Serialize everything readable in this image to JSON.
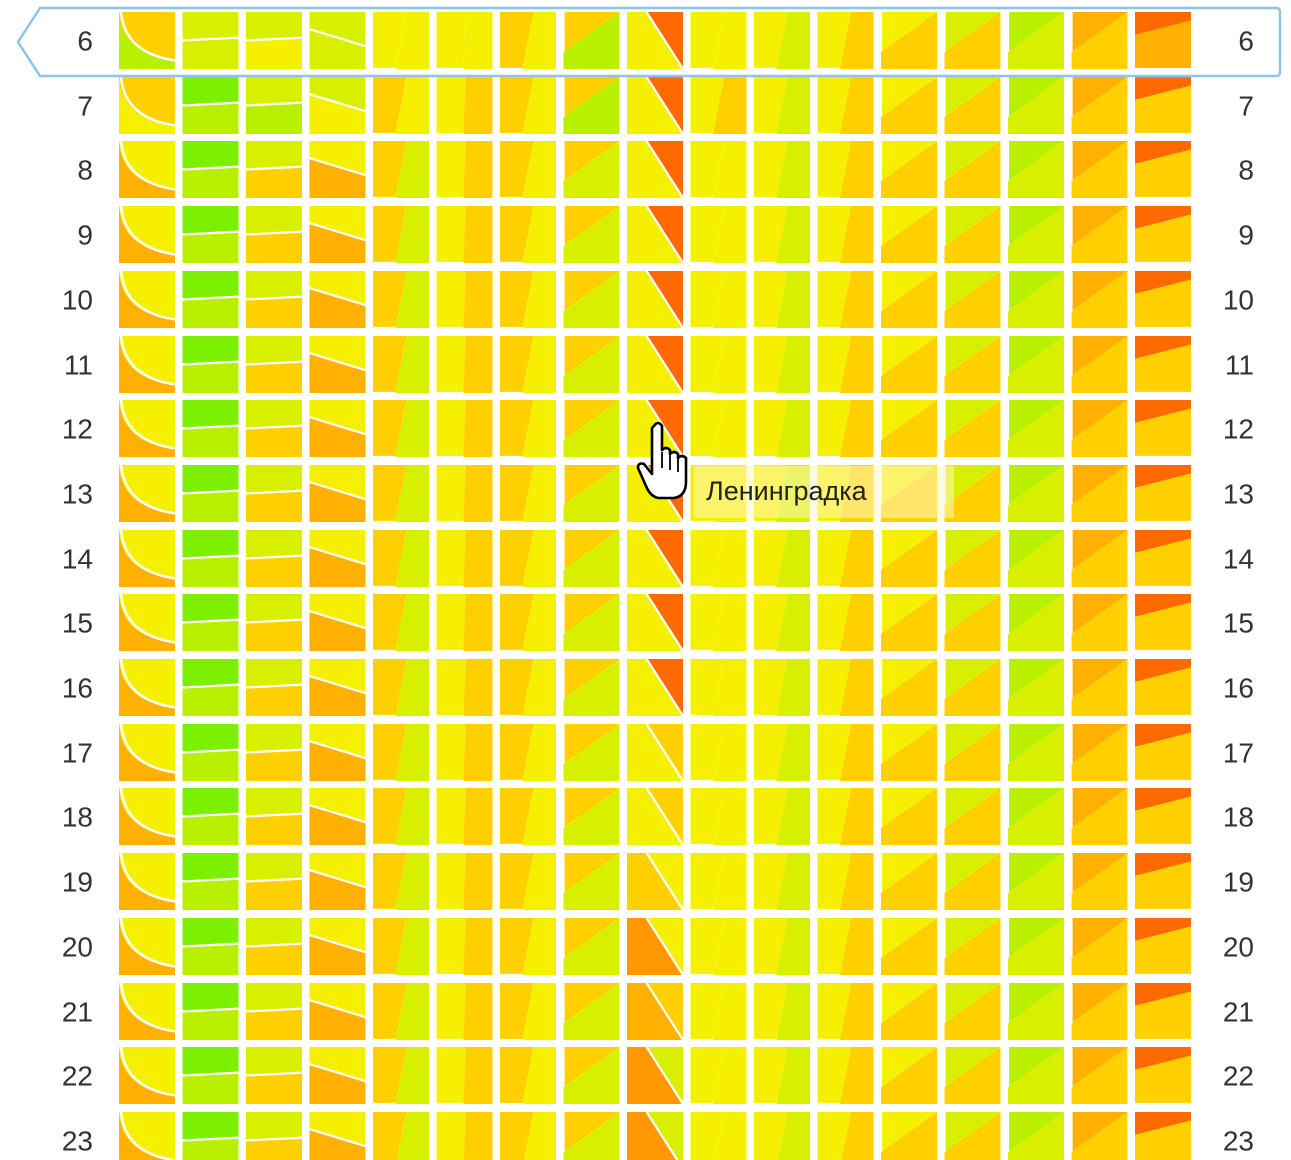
{
  "hours": [
    "6",
    "7",
    "8",
    "9",
    "10",
    "11",
    "12",
    "13",
    "14",
    "15",
    "16",
    "17",
    "18",
    "19",
    "20",
    "21",
    "22",
    "23"
  ],
  "selected_hour": "6",
  "tooltip": {
    "text": "Ленинградка"
  },
  "cursor": {
    "icon": "hand-pointer-icon"
  },
  "palette": {
    "green": "#7cf000",
    "lime": "#b8f000",
    "yellowgreen": "#d8f000",
    "yellow": "#f5f000",
    "amber": "#ffd000",
    "orange": "#ffb000",
    "deeporange": "#ff9800",
    "red": "#ff6a00",
    "highlight_border": "#8cc4ea"
  },
  "roads": [
    {
      "shape": "curve",
      "rows": [
        [
          "amber",
          "lime"
        ],
        [
          "amber",
          "yellow"
        ],
        [
          "yellow",
          "orange"
        ]
      ]
    },
    {
      "shape": "hsplit",
      "rows": [
        [
          "yellowgreen",
          "yellowgreen"
        ],
        [
          "green",
          "lime"
        ],
        [
          "green",
          "lime"
        ]
      ]
    },
    {
      "shape": "hsplit",
      "rows": [
        [
          "yellowgreen",
          "yellow"
        ],
        [
          "yellowgreen",
          "lime"
        ],
        [
          "yellowgreen",
          "amber"
        ]
      ]
    },
    {
      "shape": "wedge-down",
      "rows": [
        [
          "yellowgreen",
          "yellowgreen"
        ],
        [
          "yellowgreen",
          "yellow"
        ],
        [
          "yellow",
          "orange"
        ]
      ]
    },
    {
      "shape": "slant",
      "rows": [
        [
          "yellow",
          "yellow"
        ],
        [
          "amber",
          "yellow"
        ],
        [
          "amber",
          "yellowgreen"
        ]
      ]
    },
    {
      "shape": "vsplit",
      "rows": [
        [
          "yellow",
          "yellow"
        ],
        [
          "yellow",
          "amber"
        ],
        [
          "yellow",
          "amber"
        ]
      ]
    },
    {
      "shape": "slant",
      "rows": [
        [
          "amber",
          "yellow"
        ],
        [
          "amber",
          "yellow"
        ],
        [
          "amber",
          "yellow"
        ]
      ]
    },
    {
      "shape": "diag-up",
      "rows": [
        [
          "lime",
          "amber"
        ],
        [
          "lime",
          "amber"
        ],
        [
          "yellowgreen",
          "amber"
        ]
      ]
    },
    {
      "shape": "wedge-top",
      "rows": [
        [
          "yellow",
          "red"
        ],
        [
          "yellow",
          "red"
        ],
        [
          "yellow",
          "red"
        ]
      ]
    },
    {
      "shape": "slant",
      "rows": [
        [
          "yellow",
          "yellow"
        ],
        [
          "yellow",
          "amber"
        ],
        [
          "yellow",
          "yellow"
        ]
      ]
    },
    {
      "shape": "slant",
      "rows": [
        [
          "yellow",
          "yellowgreen"
        ],
        [
          "yellow",
          "yellowgreen"
        ],
        [
          "yellow",
          "yellowgreen"
        ]
      ]
    },
    {
      "shape": "slant",
      "rows": [
        [
          "yellow",
          "amber"
        ],
        [
          "yellow",
          "amber"
        ],
        [
          "yellow",
          "amber"
        ]
      ]
    },
    {
      "shape": "diag-up",
      "rows": [
        [
          "amber",
          "yellow"
        ],
        [
          "amber",
          "yellow"
        ],
        [
          "amber",
          "yellow"
        ]
      ]
    },
    {
      "shape": "diag-up",
      "rows": [
        [
          "amber",
          "yellowgreen"
        ],
        [
          "amber",
          "yellowgreen"
        ],
        [
          "amber",
          "yellowgreen"
        ]
      ]
    },
    {
      "shape": "diag-up",
      "rows": [
        [
          "yellowgreen",
          "lime"
        ],
        [
          "yellowgreen",
          "lime"
        ],
        [
          "yellowgreen",
          "lime"
        ]
      ]
    },
    {
      "shape": "diag-up",
      "rows": [
        [
          "amber",
          "orange"
        ],
        [
          "amber",
          "orange"
        ],
        [
          "amber",
          "orange"
        ]
      ]
    },
    {
      "shape": "wedge-up",
      "rows": [
        [
          "orange",
          "red"
        ],
        [
          "amber",
          "red"
        ],
        [
          "amber",
          "red"
        ]
      ]
    }
  ],
  "leningradka_evening": [
    [
      "yellow",
      "amber"
    ],
    [
      "yellow",
      "amber"
    ],
    [
      "amber",
      "yellow"
    ],
    [
      "deeporange",
      "yellow"
    ],
    [
      "orange",
      "amber"
    ],
    [
      "deeporange",
      "yellowgreen"
    ],
    [
      "deeporange",
      "yellowgreen"
    ]
  ]
}
